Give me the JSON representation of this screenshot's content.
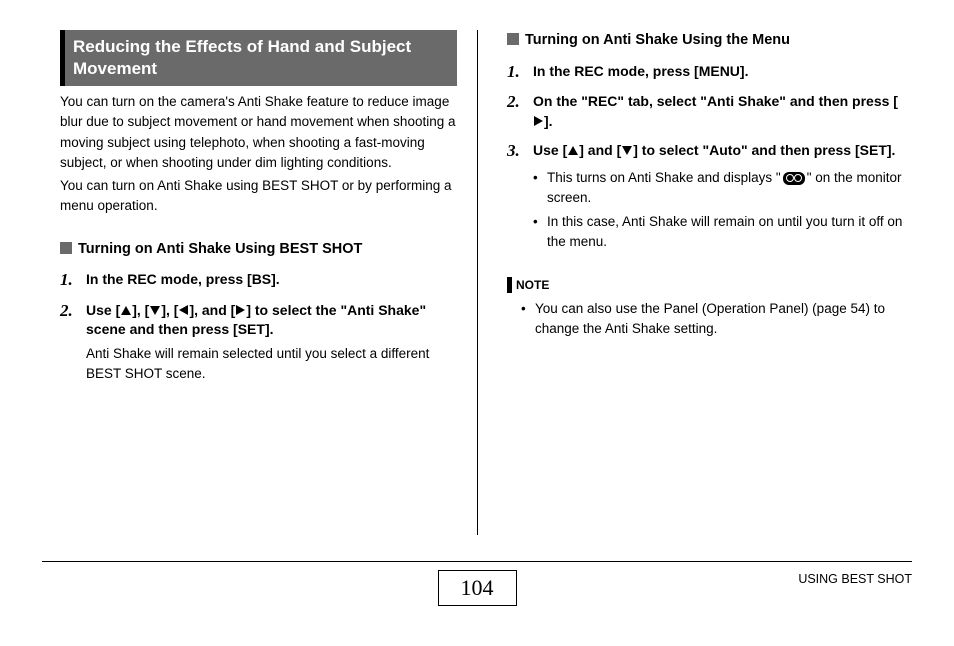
{
  "title": "Reducing the Effects of Hand and Subject Movement",
  "intro1": "You can turn on the camera's Anti Shake feature to reduce image blur due to subject movement or hand movement when shooting a moving subject using telephoto, when shooting a fast-moving subject, or when shooting under dim lighting conditions.",
  "intro2": "You can turn on Anti Shake using BEST SHOT or by performing a menu operation.",
  "leftHeading": "Turning on Anti Shake Using BEST SHOT",
  "leftSteps": {
    "s1": {
      "num": "1.",
      "text": "In the REC mode, press [BS]."
    },
    "s2": {
      "num": "2.",
      "pre": "Use [",
      "mid1": "], [",
      "mid2": "], [",
      "mid3": "], and [",
      "post": "] to select the \"Anti Shake\" scene and then press [SET].",
      "detail": "Anti Shake will remain selected until you select a different BEST SHOT scene."
    }
  },
  "rightHeading": "Turning on Anti Shake Using the Menu",
  "rightSteps": {
    "s1": {
      "num": "1.",
      "text": "In the REC mode, press [MENU]."
    },
    "s2": {
      "num": "2.",
      "pre": "On the \"REC\" tab, select \"Anti Shake\" and then press [",
      "post": "]."
    },
    "s3": {
      "num": "3.",
      "pre": "Use [",
      "mid": "] and [",
      "post": "] to select \"Auto\" and then press [SET].",
      "b1a": "This turns on Anti Shake and displays \"",
      "b1b": "\" on the monitor screen.",
      "b2": "In this case, Anti Shake will remain on until you turn it off on the menu."
    }
  },
  "noteLabel": "NOTE",
  "noteText": "You can also use the Panel (Operation Panel) (page 54) to change the Anti Shake setting.",
  "pageNum": "104",
  "footerLabel": "USING BEST SHOT",
  "colors": {
    "titleBg": "#6a6a6a",
    "titleBorder": "#000000",
    "squareFill": "#6a6a6a"
  }
}
